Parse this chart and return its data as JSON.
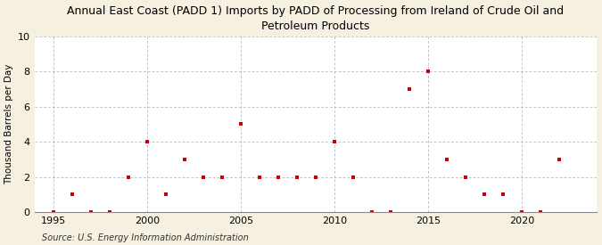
{
  "title": "Annual East Coast (PADD 1) Imports by PADD of Processing from Ireland of Crude Oil and\nPetroleum Products",
  "ylabel": "Thousand Barrels per Day",
  "source": "Source: U.S. Energy Information Administration",
  "outer_bg_color": "#f5f0e0",
  "plot_bg_color": "#ffffff",
  "marker_color": "#cc0000",
  "years": [
    1995,
    1996,
    1997,
    1998,
    1999,
    2000,
    2001,
    2002,
    2003,
    2004,
    2005,
    2006,
    2007,
    2008,
    2009,
    2010,
    2011,
    2012,
    2013,
    2014,
    2015,
    2016,
    2017,
    2018,
    2019,
    2020,
    2021,
    2022
  ],
  "values": [
    0,
    1,
    0,
    0,
    2,
    4,
    1,
    3,
    2,
    2,
    5,
    2,
    2,
    2,
    2,
    4,
    2,
    0,
    0,
    7,
    8,
    3,
    2,
    1,
    1,
    0,
    0,
    3
  ],
  "xlim": [
    1994,
    2024
  ],
  "ylim": [
    0,
    10
  ],
  "yticks": [
    0,
    2,
    4,
    6,
    8,
    10
  ],
  "xticks": [
    1995,
    2000,
    2005,
    2010,
    2015,
    2020
  ],
  "grid_color": "#aaaaaa",
  "title_fontsize": 9,
  "label_fontsize": 7.5,
  "tick_fontsize": 8,
  "source_fontsize": 7
}
